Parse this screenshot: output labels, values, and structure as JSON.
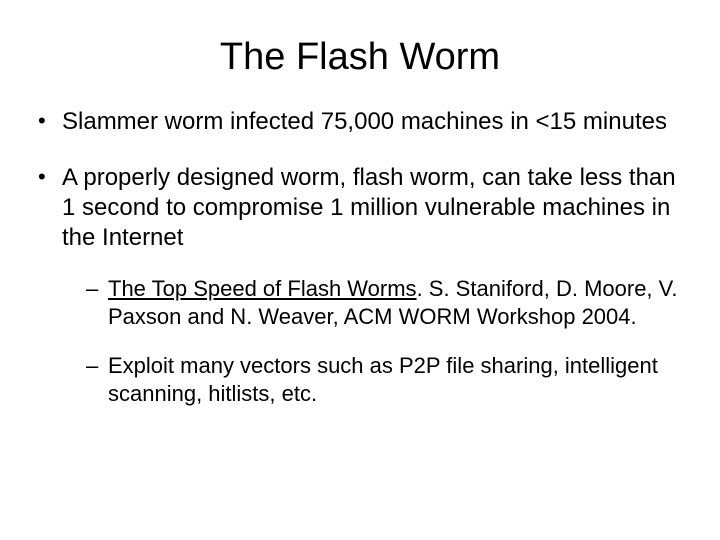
{
  "title": "The Flash Worm",
  "bullets": [
    {
      "text": "Slammer worm infected 75,000 machines in <15 minutes"
    },
    {
      "text": "A properly designed worm, flash worm, can take less than 1 second to compromise 1 million vulnerable machines in the Internet",
      "sub": [
        {
          "link_text": "The Top Speed of Flash Worms",
          "rest": ". S. Staniford, D. Moore, V. Paxson and N. Weaver, ACM WORM Workshop 2004."
        },
        {
          "text": "Exploit many vectors such as P2P file sharing, intelligent scanning, hitlists, etc."
        }
      ]
    }
  ],
  "colors": {
    "background": "#ffffff",
    "text": "#000000"
  },
  "fonts": {
    "title_size_pt": 38,
    "body_size_pt": 24,
    "sub_size_pt": 22,
    "family": "Comic Sans MS"
  }
}
